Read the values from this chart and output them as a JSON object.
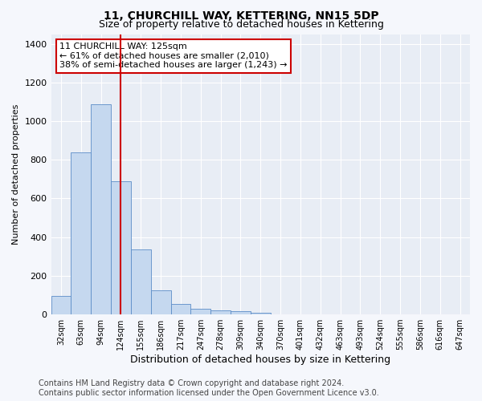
{
  "title": "11, CHURCHILL WAY, KETTERING, NN15 5DP",
  "subtitle": "Size of property relative to detached houses in Kettering",
  "xlabel": "Distribution of detached houses by size in Kettering",
  "ylabel": "Number of detached properties",
  "categories": [
    "32sqm",
    "63sqm",
    "94sqm",
    "124sqm",
    "155sqm",
    "186sqm",
    "217sqm",
    "247sqm",
    "278sqm",
    "309sqm",
    "340sqm",
    "370sqm",
    "401sqm",
    "432sqm",
    "463sqm",
    "493sqm",
    "524sqm",
    "555sqm",
    "586sqm",
    "616sqm",
    "647sqm"
  ],
  "values": [
    97,
    840,
    1085,
    690,
    335,
    125,
    55,
    30,
    22,
    15,
    8,
    0,
    0,
    0,
    0,
    0,
    0,
    0,
    0,
    0,
    0
  ],
  "bar_color": "#c5d8ef",
  "bar_edge_color": "#5b8dc8",
  "vline_x_index": 3,
  "vline_color": "#cc0000",
  "annotation_line1": "11 CHURCHILL WAY: 125sqm",
  "annotation_line2": "← 61% of detached houses are smaller (2,010)",
  "annotation_line3": "38% of semi-detached houses are larger (1,243) →",
  "annotation_box_color": "#ffffff",
  "annotation_box_edge_color": "#cc0000",
  "ylim": [
    0,
    1450
  ],
  "yticks": [
    0,
    200,
    400,
    600,
    800,
    1000,
    1200,
    1400
  ],
  "footer_line1": "Contains HM Land Registry data © Crown copyright and database right 2024.",
  "footer_line2": "Contains public sector information licensed under the Open Government Licence v3.0.",
  "fig_bg_color": "#f5f7fc",
  "plot_bg_color": "#e8edf5",
  "grid_color": "#ffffff",
  "title_fontsize": 10,
  "subtitle_fontsize": 9,
  "tick_fontsize": 7,
  "ylabel_fontsize": 8,
  "xlabel_fontsize": 9,
  "annotation_fontsize": 8,
  "footer_fontsize": 7
}
